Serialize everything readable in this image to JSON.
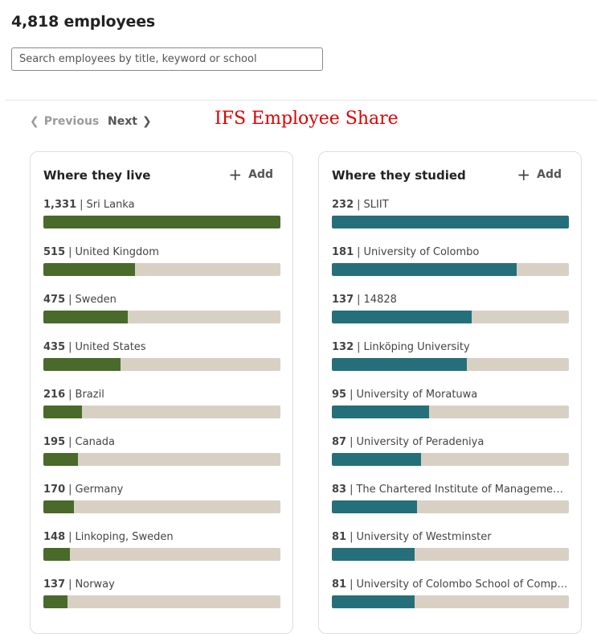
{
  "header": {
    "employee_count": "4,818 employees"
  },
  "search": {
    "placeholder": "Search employees by title, keyword or school",
    "value": ""
  },
  "pager": {
    "prev_label": "Previous",
    "next_label": "Next",
    "prev_icon": "chevron-left-icon",
    "next_icon": "chevron-right-icon"
  },
  "overlay_title": "IFS Employee Share",
  "colors": {
    "live_bar": "#496a2a",
    "studied_bar": "#256f7b",
    "track": "#d9d0c4",
    "overlay_text": "#e00000"
  },
  "live": {
    "title": "Where they live",
    "add_label": "Add",
    "max": 1331,
    "items": [
      {
        "count": "1,331",
        "value": 1331,
        "label": "Sri Lanka"
      },
      {
        "count": "515",
        "value": 515,
        "label": "United Kingdom"
      },
      {
        "count": "475",
        "value": 475,
        "label": "Sweden"
      },
      {
        "count": "435",
        "value": 435,
        "label": "United States"
      },
      {
        "count": "216",
        "value": 216,
        "label": "Brazil"
      },
      {
        "count": "195",
        "value": 195,
        "label": "Canada"
      },
      {
        "count": "170",
        "value": 170,
        "label": "Germany"
      },
      {
        "count": "148",
        "value": 148,
        "label": "Linkoping, Sweden"
      },
      {
        "count": "137",
        "value": 137,
        "label": "Norway"
      }
    ]
  },
  "studied": {
    "title": "Where they studied",
    "add_label": "Add",
    "max": 232,
    "items": [
      {
        "count": "232",
        "value": 232,
        "label": "SLIIT"
      },
      {
        "count": "181",
        "value": 181,
        "label": "University of Colombo"
      },
      {
        "count": "137",
        "value": 137,
        "label": "14828"
      },
      {
        "count": "132",
        "value": 132,
        "label": "Linköping University"
      },
      {
        "count": "95",
        "value": 95,
        "label": "University of Moratuwa"
      },
      {
        "count": "87",
        "value": 87,
        "label": "University of Peradeniya"
      },
      {
        "count": "83",
        "value": 83,
        "label": "The Chartered Institute of Managemen…"
      },
      {
        "count": "81",
        "value": 81,
        "label": "University of Westminster"
      },
      {
        "count": "81",
        "value": 81,
        "label": "University of Colombo School of Comp…"
      }
    ]
  }
}
